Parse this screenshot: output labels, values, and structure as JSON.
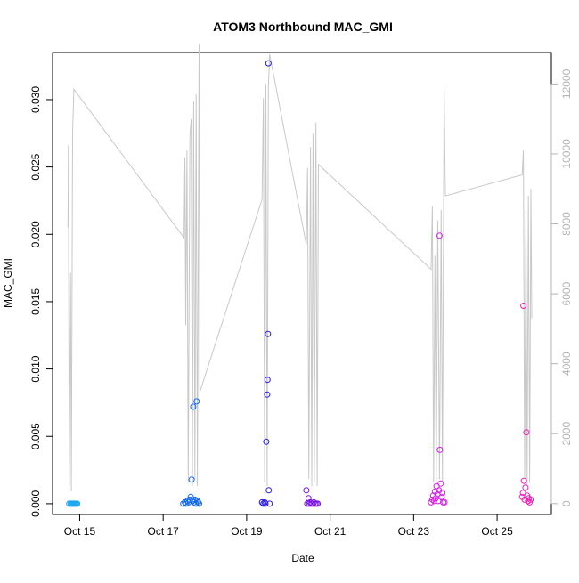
{
  "chart_data": {
    "type": "scatter",
    "title": "ATOM3 Northbound MAC_GMI",
    "xlabel": "Date",
    "ylabel": "MAC_GMI",
    "x_ticks": [
      "Oct 15",
      "Oct 17",
      "Oct 19",
      "Oct 21",
      "Oct 23",
      "Oct 25"
    ],
    "y_ticks_left": [
      "0.000",
      "0.005",
      "0.010",
      "0.015",
      "0.020",
      "0.025",
      "0.030"
    ],
    "y_ticks_right": [
      "0",
      "2000",
      "4000",
      "6000",
      "8000",
      "10000",
      "12000"
    ],
    "xlim": [
      14.35,
      26.3
    ],
    "ylim": [
      -0.0008,
      0.0335
    ],
    "y2lim": [
      -310,
      12900
    ],
    "grid": false,
    "colors": {
      "line": "#c8c8c8",
      "right_axis": "#b4b4b4",
      "axis": "#000000"
    },
    "series": [
      {
        "kind": "line",
        "axis": "right",
        "points": [
          [
            14.72,
            7900
          ],
          [
            14.73,
            10250
          ],
          [
            14.75,
            500
          ],
          [
            14.78,
            6600
          ],
          [
            14.8,
            350
          ],
          [
            14.83,
            10600
          ],
          [
            14.86,
            11850
          ],
          [
            17.5,
            7600
          ],
          [
            17.52,
            9900
          ],
          [
            17.54,
            5100
          ],
          [
            17.57,
            10100
          ],
          [
            17.6,
            600
          ],
          [
            17.64,
            10500
          ],
          [
            17.67,
            11000
          ],
          [
            17.7,
            500
          ],
          [
            17.73,
            11500
          ],
          [
            17.76,
            700
          ],
          [
            17.79,
            11700
          ],
          [
            17.82,
            500
          ],
          [
            17.86,
            13150
          ],
          [
            17.88,
            3200
          ],
          [
            19.37,
            8700
          ],
          [
            19.4,
            11600
          ],
          [
            19.43,
            600
          ],
          [
            19.46,
            12000
          ],
          [
            19.49,
            500
          ],
          [
            19.52,
            11900
          ],
          [
            19.55,
            12850
          ],
          [
            20.43,
            7400
          ],
          [
            20.46,
            9600
          ],
          [
            20.49,
            700
          ],
          [
            20.53,
            10200
          ],
          [
            20.56,
            500
          ],
          [
            20.59,
            10600
          ],
          [
            20.62,
            600
          ],
          [
            20.66,
            10900
          ],
          [
            20.69,
            500
          ],
          [
            20.72,
            9700
          ],
          [
            23.42,
            6700
          ],
          [
            23.45,
            8500
          ],
          [
            23.48,
            600
          ],
          [
            23.51,
            7100
          ],
          [
            23.54,
            500
          ],
          [
            23.58,
            8100
          ],
          [
            23.62,
            700
          ],
          [
            23.66,
            8400
          ],
          [
            23.69,
            600
          ],
          [
            23.73,
            11900
          ],
          [
            23.76,
            8800
          ],
          [
            25.6,
            9400
          ],
          [
            25.63,
            10100
          ],
          [
            25.66,
            700
          ],
          [
            25.69,
            8400
          ],
          [
            25.72,
            500
          ],
          [
            25.75,
            8800
          ],
          [
            25.78,
            600
          ],
          [
            25.81,
            9000
          ],
          [
            25.83,
            5300
          ]
        ]
      },
      {
        "kind": "points",
        "axis": "left",
        "points": [
          {
            "x": 14.75,
            "y": 0.0,
            "color": "#1aa7ee"
          },
          {
            "x": 14.78,
            "y": 0.0,
            "color": "#1aa7ee"
          },
          {
            "x": 14.8,
            "y": 0.0,
            "color": "#1aa7ee"
          },
          {
            "x": 14.82,
            "y": 0.0,
            "color": "#1aa7ee"
          },
          {
            "x": 14.84,
            "y": 0.0,
            "color": "#1aa7ee"
          },
          {
            "x": 14.86,
            "y": 0.0,
            "color": "#1aa7ee"
          },
          {
            "x": 14.88,
            "y": 0.0,
            "color": "#1aa7ee"
          },
          {
            "x": 14.9,
            "y": 0.0,
            "color": "#1aa7ee"
          },
          {
            "x": 14.92,
            "y": 0.0,
            "color": "#1aa7ee"
          },
          {
            "x": 14.94,
            "y": 0.0,
            "color": "#1aa7ee"
          },
          {
            "x": 17.48,
            "y": 0.0,
            "color": "#0f66ee"
          },
          {
            "x": 17.52,
            "y": 0.0001,
            "color": "#0f66ee"
          },
          {
            "x": 17.55,
            "y": 0.0,
            "color": "#0f66ee"
          },
          {
            "x": 17.58,
            "y": 0.0002,
            "color": "#0f66ee"
          },
          {
            "x": 17.61,
            "y": 0.0001,
            "color": "#0f66ee"
          },
          {
            "x": 17.64,
            "y": 0.0003,
            "color": "#0f66ee"
          },
          {
            "x": 17.66,
            "y": 0.0005,
            "color": "#0f66ee"
          },
          {
            "x": 17.68,
            "y": 0.0018,
            "color": "#0f66ee"
          },
          {
            "x": 17.7,
            "y": 0.0002,
            "color": "#0f66ee"
          },
          {
            "x": 17.72,
            "y": 0.0072,
            "color": "#0f66ee"
          },
          {
            "x": 17.74,
            "y": 0.0001,
            "color": "#0f66ee"
          },
          {
            "x": 17.76,
            "y": 0.0003,
            "color": "#0f66ee"
          },
          {
            "x": 17.78,
            "y": 0.0,
            "color": "#0f66ee"
          },
          {
            "x": 17.8,
            "y": 0.0076,
            "color": "#0f66ee"
          },
          {
            "x": 17.82,
            "y": 0.0002,
            "color": "#0f66ee"
          },
          {
            "x": 17.84,
            "y": 0.0001,
            "color": "#0f66ee"
          },
          {
            "x": 17.86,
            "y": 0.0,
            "color": "#0f66ee"
          },
          {
            "x": 19.37,
            "y": 0.0001,
            "color": "#2a1ae8"
          },
          {
            "x": 19.4,
            "y": 0.0,
            "color": "#2a1ae8"
          },
          {
            "x": 19.43,
            "y": 0.0001,
            "color": "#2a1ae8"
          },
          {
            "x": 19.45,
            "y": 0.0,
            "color": "#2a1ae8"
          },
          {
            "x": 19.47,
            "y": 0.0046,
            "color": "#2a1ae8"
          },
          {
            "x": 19.49,
            "y": 0.0081,
            "color": "#2a1ae8"
          },
          {
            "x": 19.5,
            "y": 0.0092,
            "color": "#2a1ae8"
          },
          {
            "x": 19.51,
            "y": 0.0126,
            "color": "#2a1ae8"
          },
          {
            "x": 19.52,
            "y": 0.0327,
            "color": "#2a1ae8"
          },
          {
            "x": 19.53,
            "y": 0.001,
            "color": "#2a1ae8"
          },
          {
            "x": 19.55,
            "y": 0.0,
            "color": "#2a1ae8"
          },
          {
            "x": 20.43,
            "y": 0.001,
            "color": "#7a12e6"
          },
          {
            "x": 20.45,
            "y": 0.0,
            "color": "#7a12e6"
          },
          {
            "x": 20.48,
            "y": 0.0004,
            "color": "#7a12e6"
          },
          {
            "x": 20.5,
            "y": 0.0,
            "color": "#7a12e6"
          },
          {
            "x": 20.52,
            "y": 0.0001,
            "color": "#7a12e6"
          },
          {
            "x": 20.55,
            "y": 0.0,
            "color": "#7a12e6"
          },
          {
            "x": 20.58,
            "y": 0.0,
            "color": "#7a12e6"
          },
          {
            "x": 20.61,
            "y": 0.0001,
            "color": "#7a12e6"
          },
          {
            "x": 20.64,
            "y": 0.0,
            "color": "#7a12e6"
          },
          {
            "x": 20.67,
            "y": 0.0,
            "color": "#7a12e6"
          },
          {
            "x": 20.7,
            "y": 0.0,
            "color": "#7a12e6"
          },
          {
            "x": 23.42,
            "y": 0.0001,
            "color": "#d61fe8"
          },
          {
            "x": 23.45,
            "y": 0.0003,
            "color": "#d61fe8"
          },
          {
            "x": 23.47,
            "y": 0.0006,
            "color": "#d61fe8"
          },
          {
            "x": 23.49,
            "y": 0.0002,
            "color": "#d61fe8"
          },
          {
            "x": 23.51,
            "y": 0.0009,
            "color": "#d61fe8"
          },
          {
            "x": 23.53,
            "y": 0.0004,
            "color": "#d61fe8"
          },
          {
            "x": 23.55,
            "y": 0.0013,
            "color": "#d61fe8"
          },
          {
            "x": 23.57,
            "y": 0.0007,
            "color": "#d61fe8"
          },
          {
            "x": 23.59,
            "y": 0.0002,
            "color": "#d61fe8"
          },
          {
            "x": 23.61,
            "y": 0.001,
            "color": "#d61fe8"
          },
          {
            "x": 23.62,
            "y": 0.0199,
            "color": "#d61fe8"
          },
          {
            "x": 23.63,
            "y": 0.004,
            "color": "#d61fe8"
          },
          {
            "x": 23.65,
            "y": 0.0015,
            "color": "#d61fe8"
          },
          {
            "x": 23.67,
            "y": 0.0005,
            "color": "#d61fe8"
          },
          {
            "x": 23.69,
            "y": 0.0008,
            "color": "#d61fe8"
          },
          {
            "x": 23.71,
            "y": 0.0001,
            "color": "#d61fe8"
          },
          {
            "x": 23.74,
            "y": 0.0001,
            "color": "#d61fe8"
          },
          {
            "x": 25.6,
            "y": 0.0005,
            "color": "#ee1fb8"
          },
          {
            "x": 25.62,
            "y": 0.0008,
            "color": "#ee1fb8"
          },
          {
            "x": 25.63,
            "y": 0.0147,
            "color": "#ee1fb8"
          },
          {
            "x": 25.64,
            "y": 0.0017,
            "color": "#ee1fb8"
          },
          {
            "x": 25.66,
            "y": 0.0003,
            "color": "#ee1fb8"
          },
          {
            "x": 25.68,
            "y": 0.0012,
            "color": "#ee1fb8"
          },
          {
            "x": 25.7,
            "y": 0.0053,
            "color": "#ee1fb8"
          },
          {
            "x": 25.72,
            "y": 0.0006,
            "color": "#ee1fb8"
          },
          {
            "x": 25.74,
            "y": 0.0002,
            "color": "#ee1fb8"
          },
          {
            "x": 25.76,
            "y": 0.0004,
            "color": "#ee1fb8"
          },
          {
            "x": 25.78,
            "y": 0.0001,
            "color": "#ee1fb8"
          },
          {
            "x": 25.8,
            "y": 0.0003,
            "color": "#ee1fb8"
          }
        ]
      }
    ]
  }
}
